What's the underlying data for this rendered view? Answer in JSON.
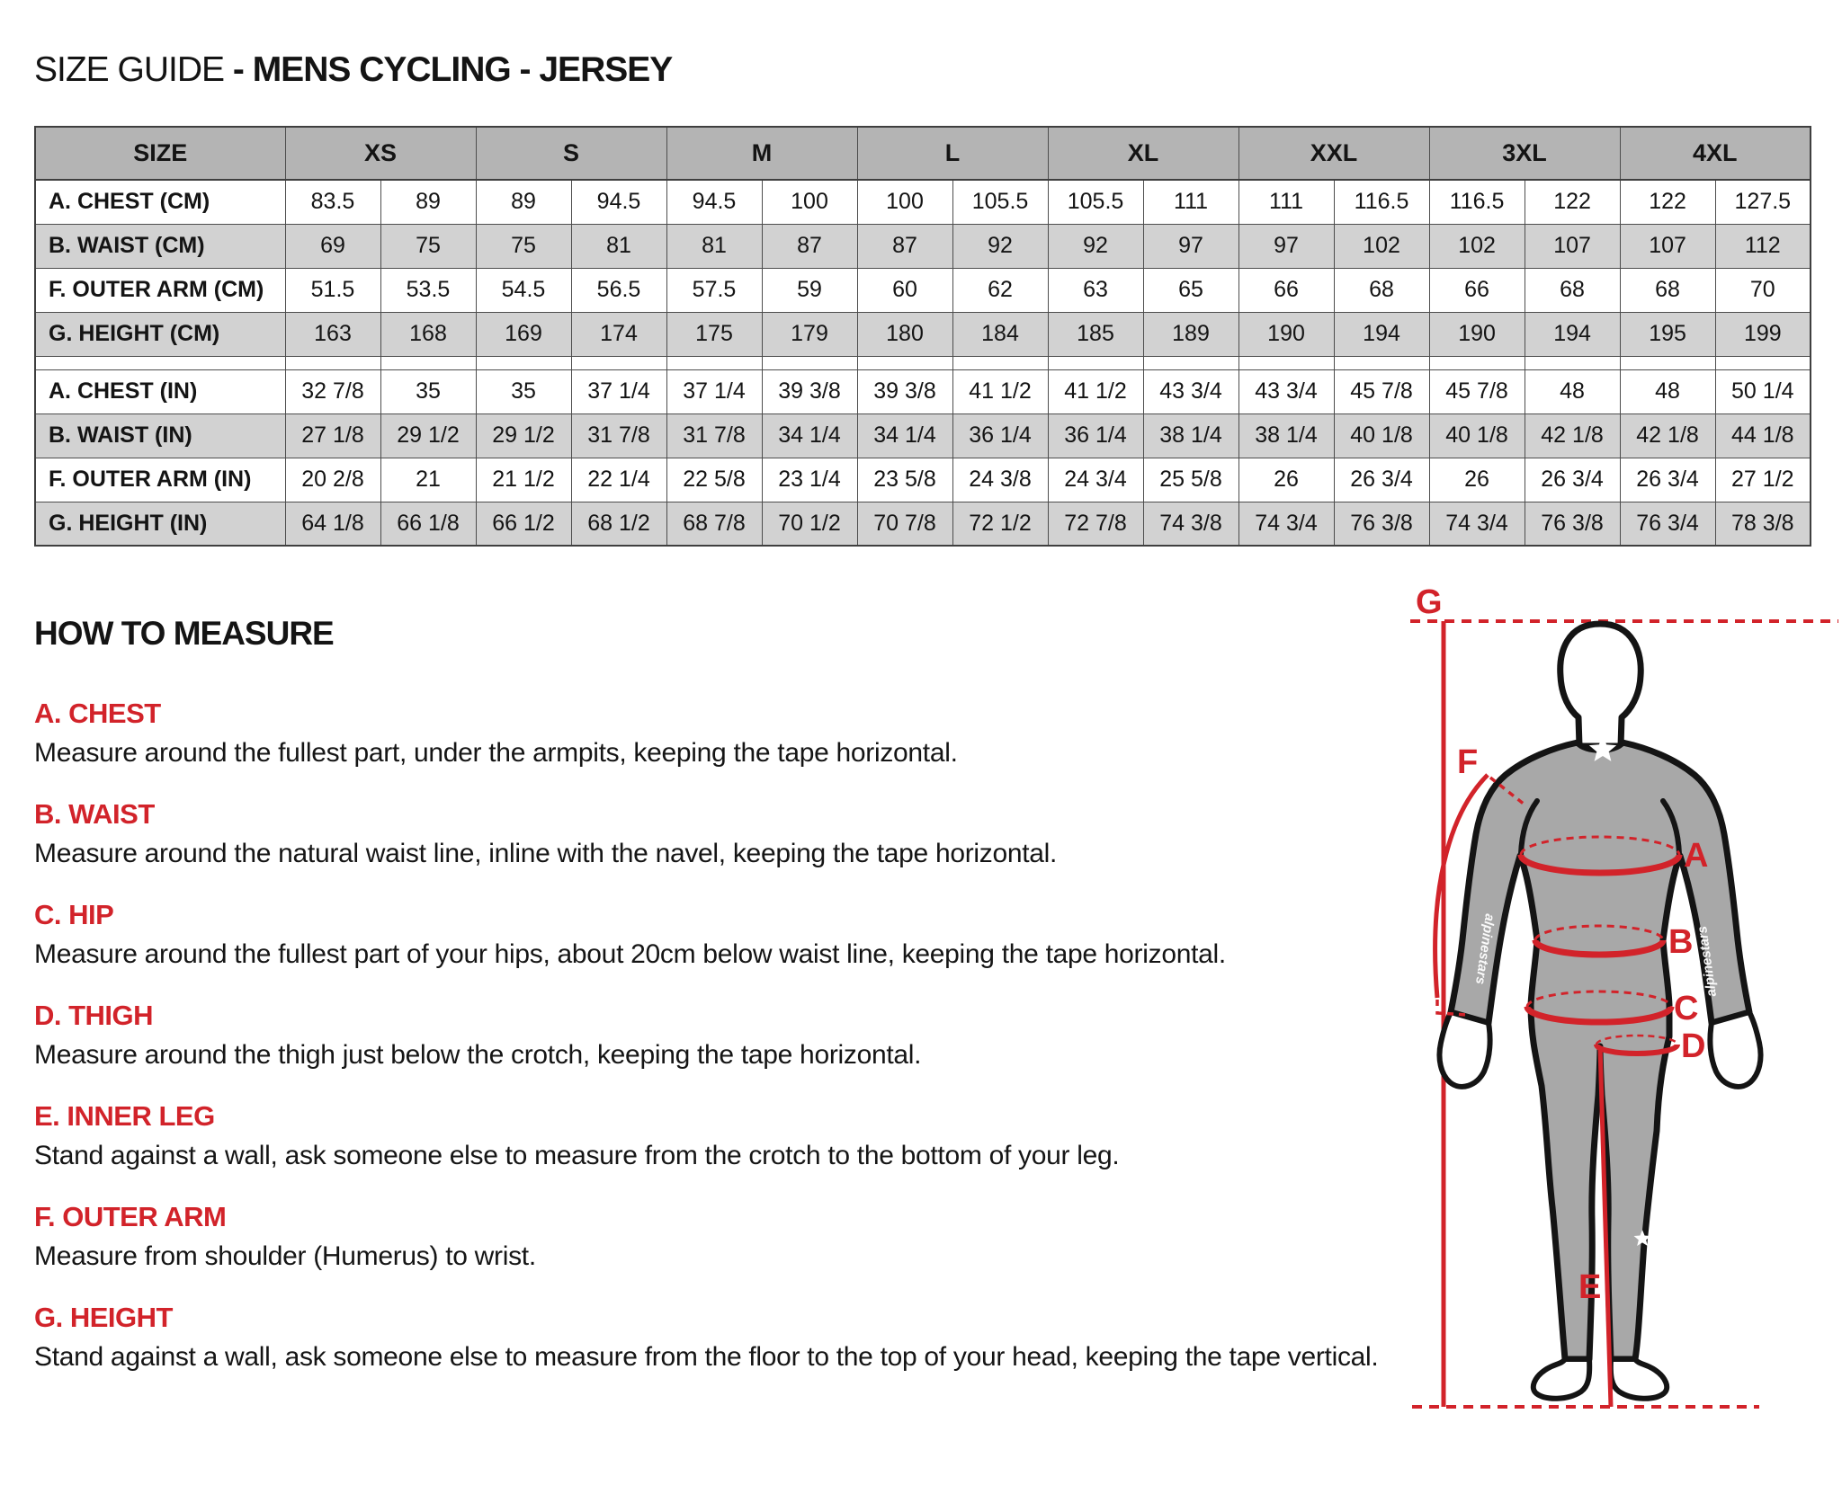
{
  "title": {
    "prefix": "SIZE GUIDE ",
    "bold": "- MENS CYCLING - JERSEY"
  },
  "size_table": {
    "corner_label": "SIZE",
    "sizes": [
      "XS",
      "S",
      "M",
      "L",
      "XL",
      "XXL",
      "3XL",
      "4XL"
    ],
    "rows_cm": [
      {
        "label": "A. CHEST (CM)",
        "values": [
          "83.5",
          "89",
          "89",
          "94.5",
          "94.5",
          "100",
          "100",
          "105.5",
          "105.5",
          "111",
          "111",
          "116.5",
          "116.5",
          "122",
          "122",
          "127.5"
        ]
      },
      {
        "label": "B. WAIST (CM)",
        "values": [
          "69",
          "75",
          "75",
          "81",
          "81",
          "87",
          "87",
          "92",
          "92",
          "97",
          "97",
          "102",
          "102",
          "107",
          "107",
          "112"
        ]
      },
      {
        "label": "F. OUTER ARM (CM)",
        "values": [
          "51.5",
          "53.5",
          "54.5",
          "56.5",
          "57.5",
          "59",
          "60",
          "62",
          "63",
          "65",
          "66",
          "68",
          "66",
          "68",
          "68",
          "70"
        ]
      },
      {
        "label": "G. HEIGHT (CM)",
        "values": [
          "163",
          "168",
          "169",
          "174",
          "175",
          "179",
          "180",
          "184",
          "185",
          "189",
          "190",
          "194",
          "190",
          "194",
          "195",
          "199"
        ]
      }
    ],
    "rows_in": [
      {
        "label": "A. CHEST (IN)",
        "values": [
          "32 7/8",
          "35",
          "35",
          "37 1/4",
          "37 1/4",
          "39 3/8",
          "39 3/8",
          "41 1/2",
          "41 1/2",
          "43 3/4",
          "43 3/4",
          "45 7/8",
          "45 7/8",
          "48",
          "48",
          "50 1/4"
        ]
      },
      {
        "label": "B. WAIST (IN)",
        "values": [
          "27 1/8",
          "29 1/2",
          "29 1/2",
          "31 7/8",
          "31 7/8",
          "34 1/4",
          "34 1/4",
          "36 1/4",
          "36 1/4",
          "38 1/4",
          "38 1/4",
          "40 1/8",
          "40 1/8",
          "42 1/8",
          "42 1/8",
          "44 1/8"
        ]
      },
      {
        "label": "F. OUTER ARM (IN)",
        "values": [
          "20 2/8",
          "21",
          "21 1/2",
          "22 1/4",
          "22 5/8",
          "23 1/4",
          "23 5/8",
          "24 3/8",
          "24 3/4",
          "25 5/8",
          "26",
          "26 3/4",
          "26",
          "26 3/4",
          "26 3/4",
          "27 1/2"
        ]
      },
      {
        "label": "G. HEIGHT (IN)",
        "values": [
          "64 1/8",
          "66 1/8",
          "66 1/2",
          "68 1/2",
          "68 7/8",
          "70 1/2",
          "70 7/8",
          "72 1/2",
          "72 7/8",
          "74 3/8",
          "74 3/4",
          "76 3/8",
          "74 3/4",
          "76 3/8",
          "76 3/4",
          "78 3/8"
        ]
      }
    ]
  },
  "how_to_measure": {
    "heading": "HOW TO MEASURE",
    "sections": [
      {
        "label": "A. CHEST",
        "text": "Measure around the fullest part, under the armpits, keeping the tape horizontal."
      },
      {
        "label": "B. WAIST",
        "text": "Measure around the natural waist line, inline with the navel, keeping the tape horizontal."
      },
      {
        "label": "C. HIP",
        "text": "Measure around the fullest part of your hips, about 20cm below waist line, keeping the tape horizontal."
      },
      {
        "label": "D. THIGH",
        "text": "Measure around the thigh just below the crotch, keeping the tape horizontal."
      },
      {
        "label": "E. INNER LEG",
        "text": "Stand against a wall, ask someone else to measure from the crotch to the bottom of your leg."
      },
      {
        "label": "F. OUTER ARM",
        "text": "Measure from shoulder (Humerus) to wrist."
      },
      {
        "label": "G. HEIGHT",
        "text": "Stand against a wall, ask someone else to measure from the floor to the top of your head, keeping the tape vertical."
      }
    ]
  },
  "diagram": {
    "labels": {
      "a": "A",
      "b": "B",
      "c": "C",
      "d": "D",
      "e": "E",
      "f": "F",
      "g": "G"
    },
    "brand_text": "alpinestars",
    "colors": {
      "measure_red": "#d2232a",
      "body_gray": "#a8a8a8",
      "outline": "#141414"
    }
  },
  "colors": {
    "accent_red": "#d2232a",
    "header_gray": "#b4b4b4",
    "row_gray": "#d2d2d2",
    "border": "#4d4d4d",
    "text": "#141414"
  }
}
